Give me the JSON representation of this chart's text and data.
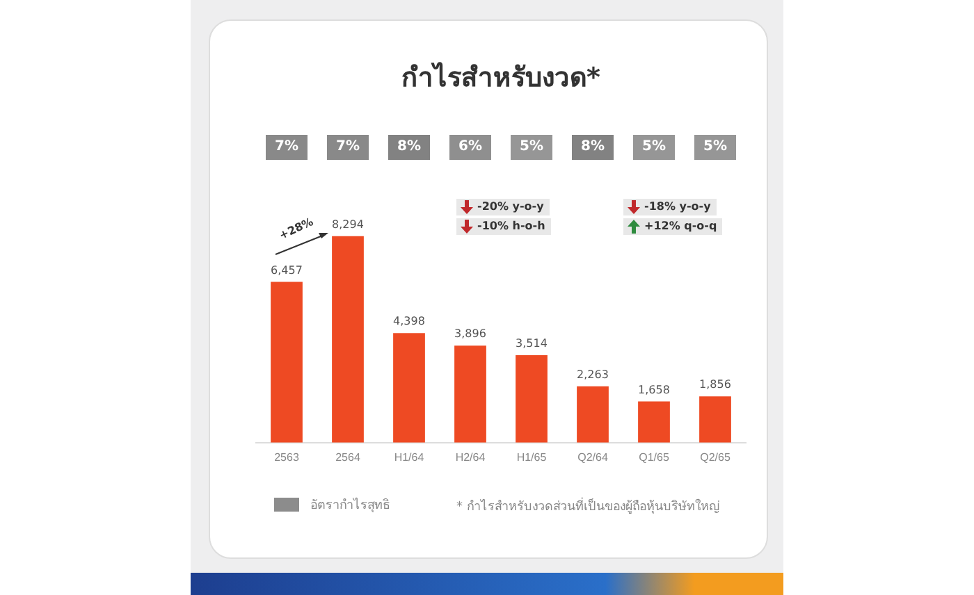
{
  "chart_data": [
    {
      "type": "heatmap",
      "title": "กำไรสำหรับงวด*",
      "categories": [
        "2563",
        "2564",
        "H1/64",
        "H2/64",
        "H1/65",
        "Q2/64",
        "Q1/65",
        "Q2/65"
      ],
      "y_categories": [
        null
      ],
      "cells": [
        [
          7,
          7,
          8,
          6,
          5,
          8,
          5,
          5
        ]
      ],
      "cell_labels": [
        [
          "7%",
          "7%",
          "8%",
          "6%",
          "5%",
          "8%",
          "5%",
          "5%"
        ]
      ],
      "tick_labels": false
    },
    {
      "type": "bar",
      "categories": [
        "2563",
        "2564",
        "H1/64",
        "H2/64",
        "H1/65",
        "Q2/64",
        "Q1/65",
        "Q2/65"
      ],
      "series": [
        {
          "color": "#ee4a23",
          "values": [
            6457,
            8294,
            4398,
            3896,
            3514,
            2263,
            1658,
            1856
          ],
          "value_labels": [
            "6,457",
            "8,294",
            "4,398",
            "3,896",
            "3,514",
            "2,263",
            "1,658",
            "1,856"
          ]
        }
      ],
      "annotations": [
        "+28%",
        "-20% y-o-y",
        "-10% h-o-h",
        "-18% y-o-y",
        "+12% q-o-q",
        "* กำไรสำหรับงวดส่วนที่เป็นของผู้ถือหุ้นบริษัทใหญ่",
        "อัตรากำไรสุทธิ"
      ],
      "grid": false,
      "tick_labels": "x"
    }
  ]
}
